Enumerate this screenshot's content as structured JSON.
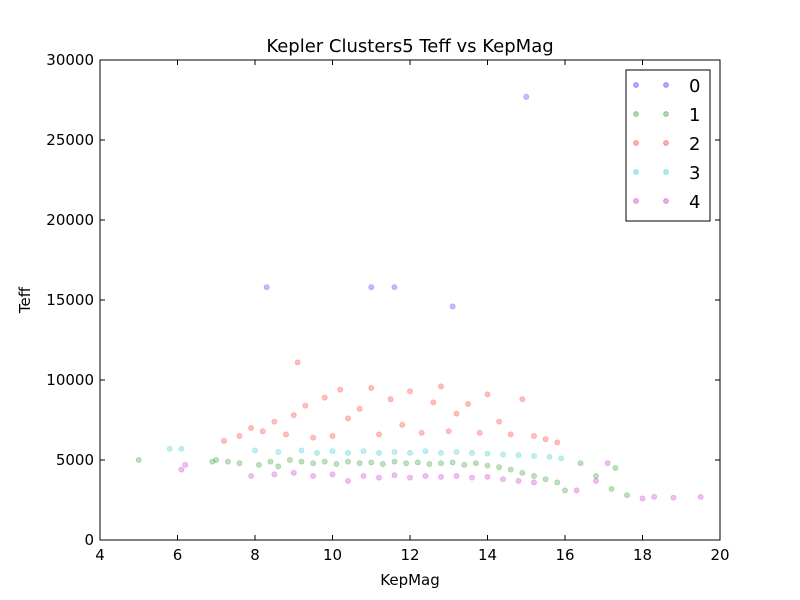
{
  "chart_data": {
    "type": "scatter",
    "title": "Kepler Clusters5 Teff vs KepMag",
    "xlabel": "KepMag",
    "ylabel": "Teff",
    "xlim": [
      4,
      20
    ],
    "ylim": [
      0,
      30000
    ],
    "x_ticks": [
      "4",
      "6",
      "8",
      "10",
      "12",
      "14",
      "16",
      "18",
      "20"
    ],
    "y_ticks": [
      "0",
      "5000",
      "10000",
      "15000",
      "20000",
      "25000",
      "30000"
    ],
    "grid": false,
    "legend_position": "top-right",
    "series": [
      {
        "name": "0",
        "color": "#0000ff",
        "points": [
          [
            8.3,
            15800
          ],
          [
            11.0,
            15800
          ],
          [
            11.6,
            15800
          ],
          [
            13.1,
            14600
          ],
          [
            15.0,
            27700
          ]
        ]
      },
      {
        "name": "1",
        "color": "#008000",
        "points": [
          [
            5.0,
            5000
          ],
          [
            6.9,
            4900
          ],
          [
            7.0,
            5000
          ],
          [
            7.3,
            4900
          ],
          [
            7.6,
            4800
          ],
          [
            8.1,
            4700
          ],
          [
            8.4,
            4900
          ],
          [
            8.6,
            4600
          ],
          [
            8.9,
            5000
          ],
          [
            9.2,
            4900
          ],
          [
            9.5,
            4800
          ],
          [
            9.8,
            4900
          ],
          [
            10.1,
            4750
          ],
          [
            10.4,
            4900
          ],
          [
            10.7,
            4800
          ],
          [
            11.0,
            4850
          ],
          [
            11.3,
            4750
          ],
          [
            11.6,
            4900
          ],
          [
            11.9,
            4800
          ],
          [
            12.2,
            4850
          ],
          [
            12.5,
            4750
          ],
          [
            12.8,
            4800
          ],
          [
            13.1,
            4850
          ],
          [
            13.4,
            4700
          ],
          [
            13.7,
            4800
          ],
          [
            14.0,
            4650
          ],
          [
            14.3,
            4550
          ],
          [
            14.6,
            4400
          ],
          [
            14.9,
            4200
          ],
          [
            15.2,
            4000
          ],
          [
            15.5,
            3800
          ],
          [
            15.8,
            3600
          ],
          [
            16.0,
            3100
          ],
          [
            16.4,
            4800
          ],
          [
            16.8,
            4000
          ],
          [
            17.2,
            3200
          ],
          [
            17.3,
            4500
          ],
          [
            17.6,
            2800
          ]
        ]
      },
      {
        "name": "2",
        "color": "#ff0000",
        "points": [
          [
            7.2,
            6200
          ],
          [
            7.6,
            6500
          ],
          [
            7.9,
            7000
          ],
          [
            8.2,
            6800
          ],
          [
            8.5,
            7400
          ],
          [
            8.8,
            6600
          ],
          [
            9.1,
            11100
          ],
          [
            9.0,
            7800
          ],
          [
            9.3,
            8400
          ],
          [
            9.5,
            6400
          ],
          [
            9.8,
            8900
          ],
          [
            10.0,
            6500
          ],
          [
            10.2,
            9400
          ],
          [
            10.4,
            7600
          ],
          [
            10.7,
            8200
          ],
          [
            11.0,
            9500
          ],
          [
            11.2,
            6600
          ],
          [
            11.5,
            8800
          ],
          [
            11.8,
            7200
          ],
          [
            12.0,
            9300
          ],
          [
            12.3,
            6700
          ],
          [
            12.6,
            8600
          ],
          [
            12.8,
            9600
          ],
          [
            13.0,
            6800
          ],
          [
            13.2,
            7900
          ],
          [
            13.5,
            8500
          ],
          [
            13.8,
            6700
          ],
          [
            14.0,
            9100
          ],
          [
            14.3,
            7400
          ],
          [
            14.6,
            6600
          ],
          [
            14.9,
            8800
          ],
          [
            15.2,
            6500
          ],
          [
            15.5,
            6300
          ],
          [
            15.8,
            6100
          ]
        ]
      },
      {
        "name": "3",
        "color": "#00bfbf",
        "points": [
          [
            5.8,
            5700
          ],
          [
            6.1,
            5700
          ],
          [
            8.0,
            5600
          ],
          [
            8.6,
            5500
          ],
          [
            9.2,
            5600
          ],
          [
            9.6,
            5450
          ],
          [
            10.0,
            5550
          ],
          [
            10.4,
            5450
          ],
          [
            10.8,
            5550
          ],
          [
            11.2,
            5450
          ],
          [
            11.6,
            5500
          ],
          [
            12.0,
            5450
          ],
          [
            12.4,
            5550
          ],
          [
            12.8,
            5450
          ],
          [
            13.2,
            5500
          ],
          [
            13.6,
            5450
          ],
          [
            14.0,
            5400
          ],
          [
            14.4,
            5350
          ],
          [
            14.8,
            5300
          ],
          [
            15.2,
            5250
          ],
          [
            15.6,
            5200
          ],
          [
            15.9,
            5100
          ]
        ]
      },
      {
        "name": "4",
        "color": "#bf00bf",
        "points": [
          [
            6.1,
            4400
          ],
          [
            6.2,
            4700
          ],
          [
            7.9,
            4000
          ],
          [
            8.5,
            4100
          ],
          [
            9.0,
            4200
          ],
          [
            9.5,
            4000
          ],
          [
            10.0,
            4100
          ],
          [
            10.4,
            3700
          ],
          [
            10.8,
            4000
          ],
          [
            11.2,
            3900
          ],
          [
            11.6,
            4050
          ],
          [
            12.0,
            3900
          ],
          [
            12.4,
            4000
          ],
          [
            12.8,
            3950
          ],
          [
            13.2,
            4000
          ],
          [
            13.6,
            3900
          ],
          [
            14.0,
            3950
          ],
          [
            14.4,
            3800
          ],
          [
            14.8,
            3700
          ],
          [
            15.2,
            3600
          ],
          [
            16.3,
            3100
          ],
          [
            16.8,
            3700
          ],
          [
            17.1,
            4800
          ],
          [
            18.0,
            2600
          ],
          [
            18.3,
            2700
          ],
          [
            18.8,
            2650
          ],
          [
            19.5,
            2700
          ]
        ]
      }
    ]
  }
}
